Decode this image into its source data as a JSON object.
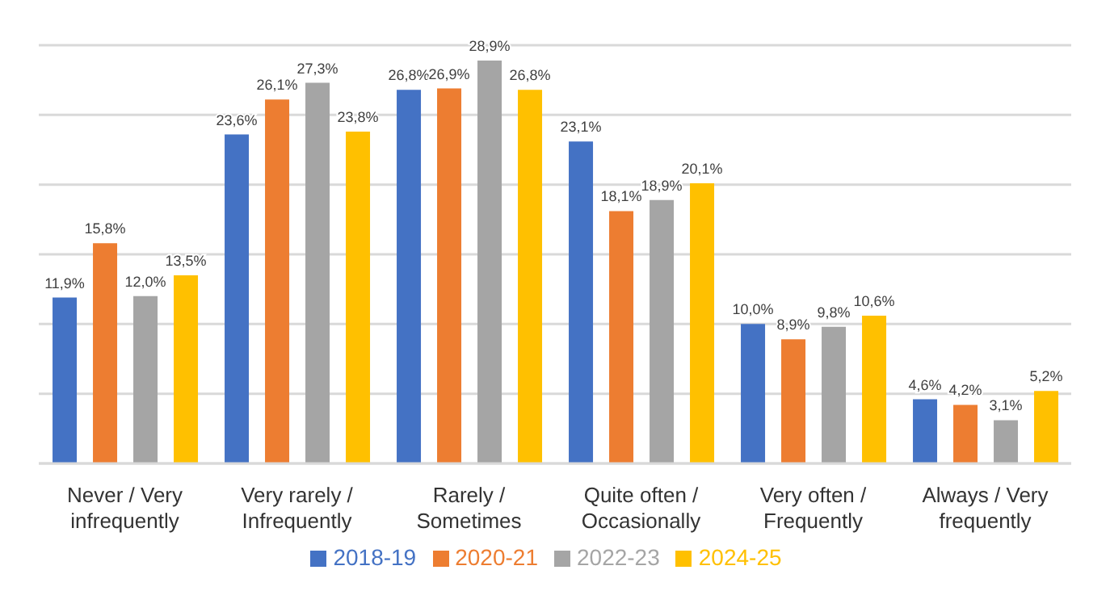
{
  "chart_data": {
    "type": "bar",
    "categories": [
      "Never / Very infrequently",
      "Very rarely / Infrequently",
      "Rarely / Sometimes",
      "Quite often / Occasionally",
      "Very often / Frequently",
      "Always / Very frequently"
    ],
    "series": [
      {
        "name": "2018-19",
        "color": "#4472c4",
        "values": [
          11.9,
          23.6,
          26.8,
          23.1,
          10.0,
          4.6
        ],
        "value_labels": [
          "11,9%",
          "23,6%",
          "26,8%",
          "23,1%",
          "10,0%",
          "4,6%"
        ]
      },
      {
        "name": "2020-21",
        "color": "#ed7d31",
        "values": [
          15.8,
          26.1,
          26.9,
          18.1,
          8.9,
          4.2
        ],
        "value_labels": [
          "15,8%",
          "26,1%",
          "26,9%",
          "18,1%",
          "8,9%",
          "4,2%"
        ]
      },
      {
        "name": "2022-23",
        "color": "#a5a5a5",
        "values": [
          12.0,
          27.3,
          28.9,
          18.9,
          9.8,
          3.1
        ],
        "value_labels": [
          "12,0%",
          "27,3%",
          "28,9%",
          "18,9%",
          "9,8%",
          "3,1%"
        ]
      },
      {
        "name": "2024-25",
        "color": "#ffc000",
        "values": [
          13.5,
          23.8,
          26.8,
          20.1,
          10.6,
          5.2
        ],
        "value_labels": [
          "13,5%",
          "23,8%",
          "26,8%",
          "20,1%",
          "10,6%",
          "5,2%"
        ]
      }
    ],
    "tick_labels": "x",
    "grid": "y",
    "legend": "bottom"
  }
}
